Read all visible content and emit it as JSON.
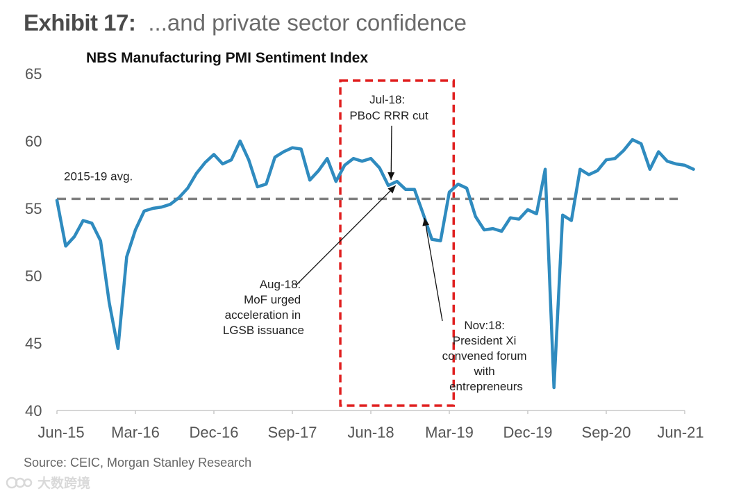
{
  "header": {
    "exhibit_label": "Exhibit 17:",
    "subtitle": "...and private sector confidence"
  },
  "source": "Source: CEIC, Morgan Stanley Research",
  "watermark": "大数跨境",
  "colors": {
    "line": "#2f8bbf",
    "avg_line": "#808080",
    "highlight_box": "#e02020",
    "axis": "#c8c8c8"
  },
  "chart_data": {
    "type": "line",
    "title": "NBS Manufacturing PMI Sentiment Index",
    "xlabel": "",
    "ylabel": "",
    "ylim": [
      40,
      65
    ],
    "yticks": [
      40,
      45,
      50,
      55,
      60,
      65
    ],
    "xlim": [
      0,
      72
    ],
    "xticks": [
      {
        "label": "Jun-15",
        "index": 0
      },
      {
        "label": "Mar-16",
        "index": 9
      },
      {
        "label": "Dec-16",
        "index": 18
      },
      {
        "label": "Sep-17",
        "index": 27
      },
      {
        "label": "Jun-18",
        "index": 36
      },
      {
        "label": "Mar-19",
        "index": 45
      },
      {
        "label": "Dec-19",
        "index": 54
      },
      {
        "label": "Sep-20",
        "index": 63
      },
      {
        "label": "Jun-21",
        "index": 72
      }
    ],
    "series": [
      {
        "name": "NBS Manufacturing PMI Sentiment Index",
        "values": [
          55.6,
          52.2,
          52.9,
          54.1,
          53.9,
          52.6,
          48.0,
          44.6,
          51.4,
          53.4,
          54.8,
          55.0,
          55.1,
          55.3,
          55.8,
          56.5,
          57.6,
          58.4,
          59.0,
          58.3,
          58.6,
          60.0,
          58.6,
          56.6,
          56.8,
          58.8,
          59.2,
          59.5,
          59.4,
          57.1,
          57.8,
          58.7,
          57.0,
          58.2,
          58.7,
          58.5,
          58.7,
          58.0,
          56.7,
          57.0,
          56.4,
          56.4,
          54.6,
          52.7,
          52.6,
          56.2,
          56.8,
          56.5,
          54.4,
          53.4,
          53.5,
          53.3,
          54.3,
          54.2,
          54.9,
          54.6,
          57.9,
          41.7,
          54.5,
          54.1,
          57.9,
          57.5,
          57.8,
          58.6,
          58.7,
          59.3,
          60.1,
          59.8,
          57.9,
          59.2,
          58.5,
          58.3,
          58.2,
          57.9
        ]
      }
    ],
    "reference_lines": [
      {
        "label": "2015-19 avg.",
        "value": 55.7
      }
    ],
    "highlight_range": {
      "from_index": 32.5,
      "to_index": 45.5
    },
    "annotations": [
      {
        "lines": [
          "Jul-18:",
          "PBoC RRR cut"
        ],
        "point_index": 38
      },
      {
        "lines": [
          "Aug-18:",
          "MoF urged",
          "acceleration in",
          "LGSB issuance"
        ],
        "point_index": 39
      },
      {
        "lines": [
          "Nov:18:",
          "President Xi",
          "convened forum",
          "with",
          "entrepreneurs"
        ],
        "point_index": 42
      }
    ]
  }
}
